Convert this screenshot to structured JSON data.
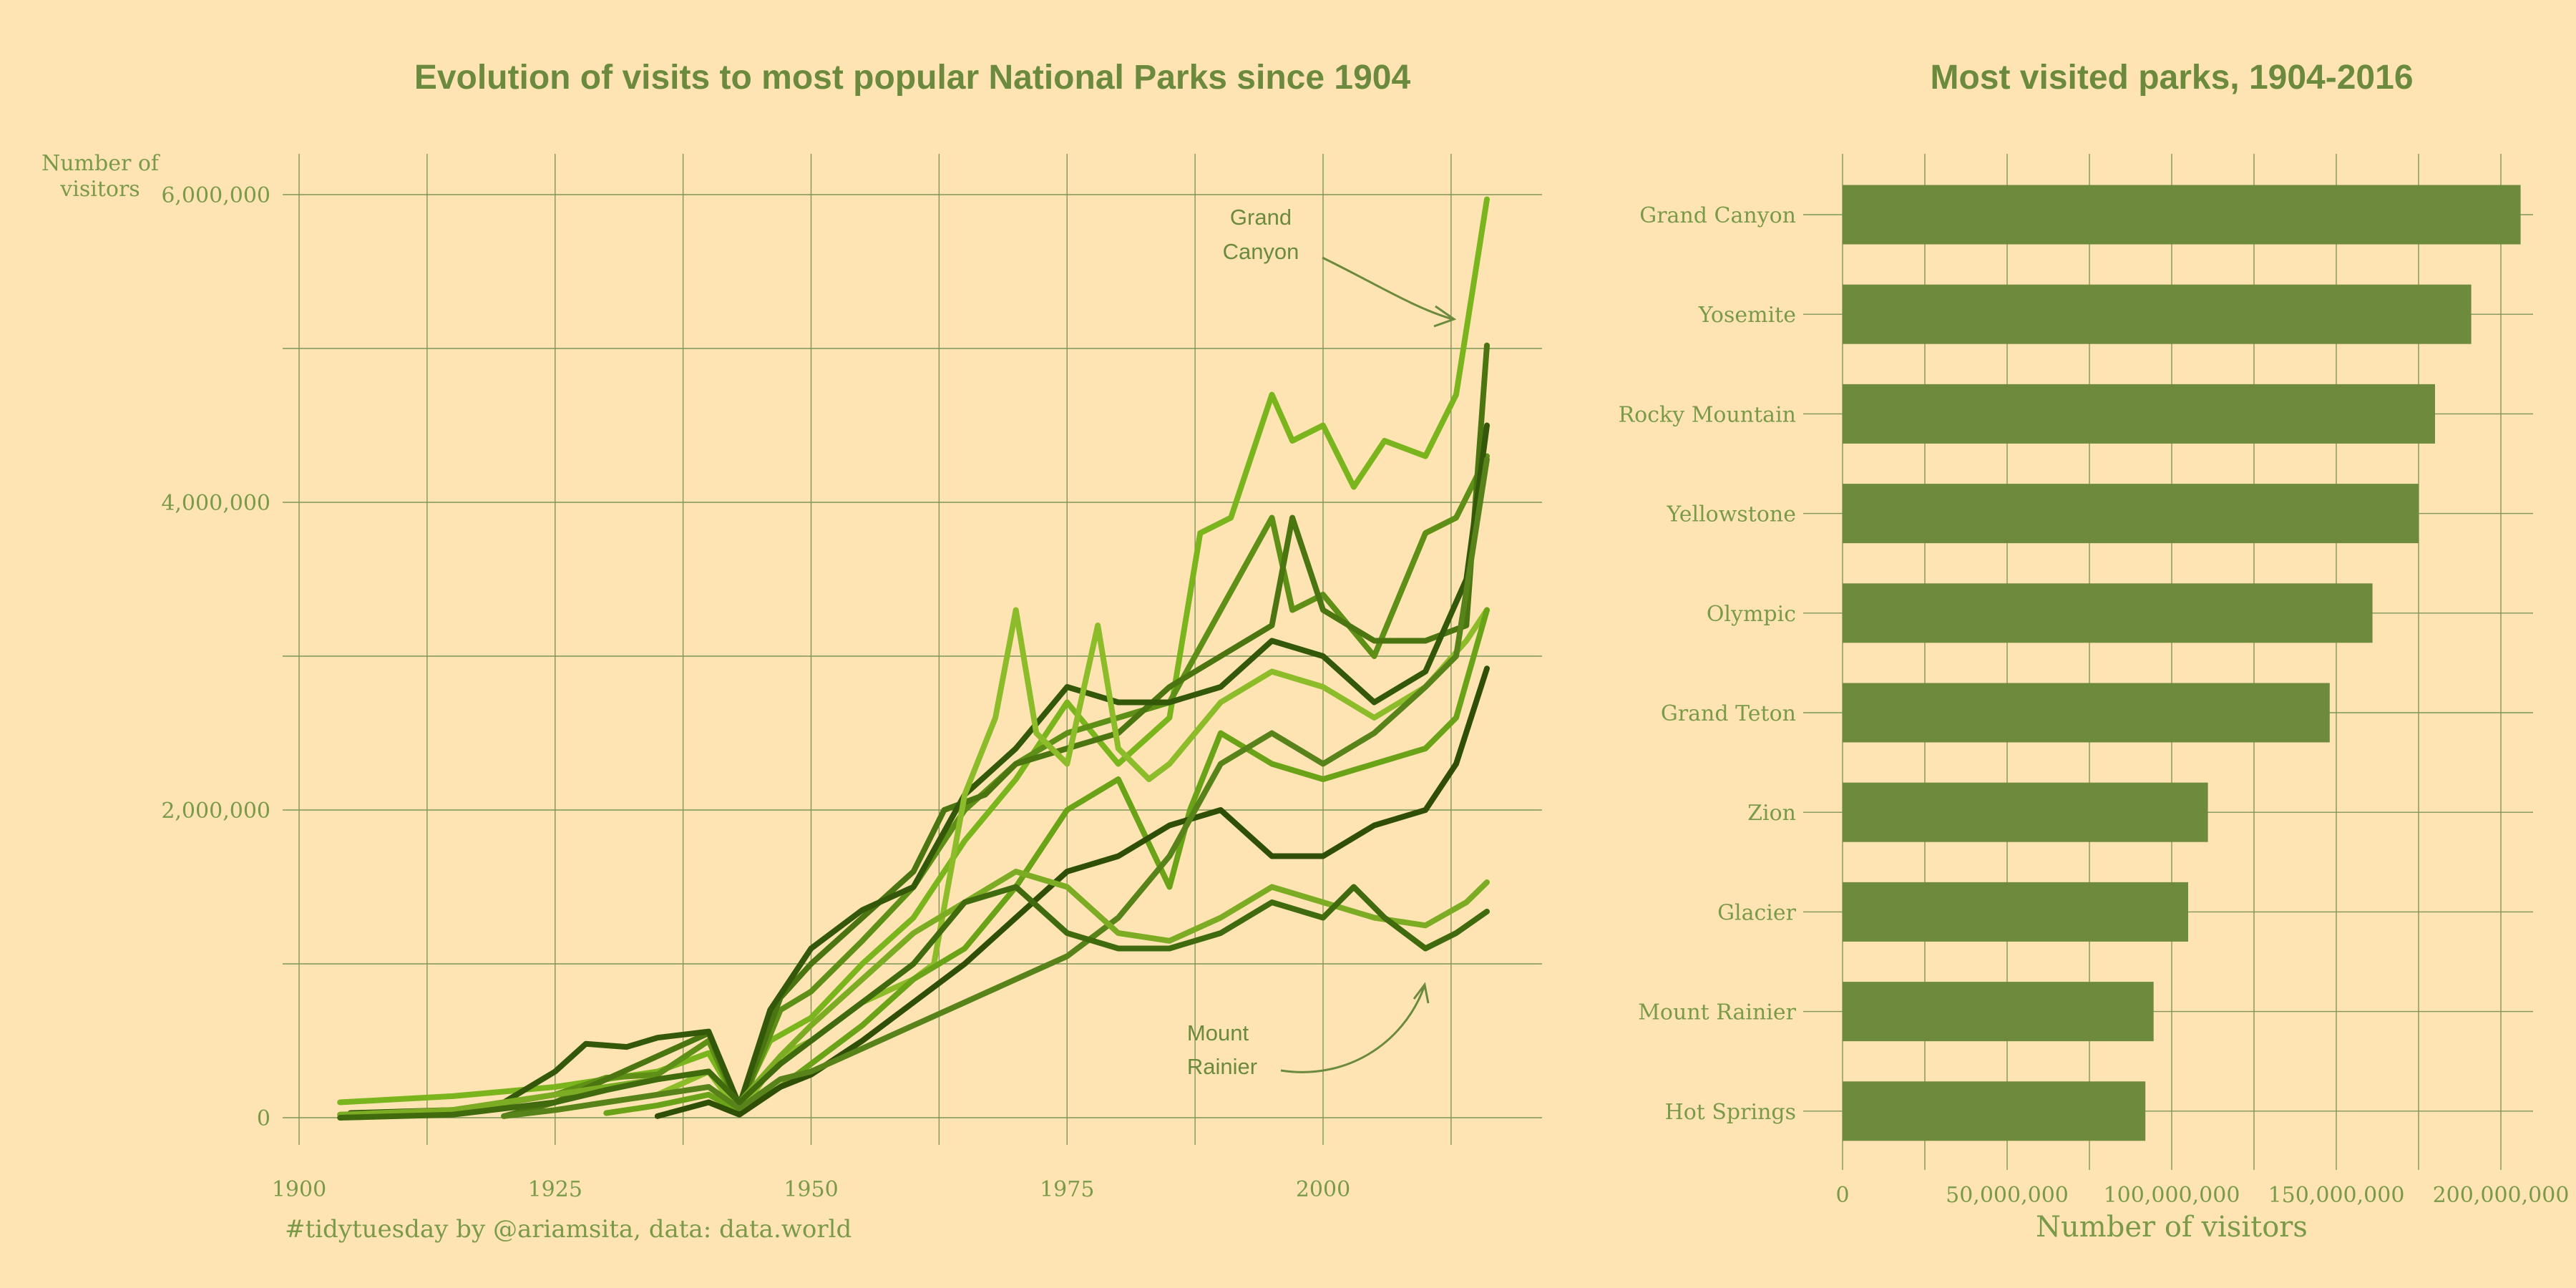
{
  "colors": {
    "background": "#ffe4b3",
    "text": "#6b8a3d",
    "grid": "#7f955a",
    "bar": "#6e8b3d",
    "line_palette": [
      "#7ab51d",
      "#5e8f16",
      "#4a7510",
      "#33580a",
      "#8cbc2a",
      "#6aa317",
      "#2f4f06",
      "#57831a",
      "#7bac24",
      "#3f6a0d"
    ]
  },
  "caption": "#tidytuesday by @ariamsita, data: data.world",
  "chart_data": [
    {
      "type": "line",
      "title": "Evolution of visits to most popular National Parks since 1904",
      "ylabel_lines": [
        "Number of",
        "visitors"
      ],
      "xlim": [
        1900,
        2020
      ],
      "ylim": [
        0,
        6000000
      ],
      "xticks": [
        1900,
        1925,
        1950,
        1975,
        2000
      ],
      "xtick_labels": [
        "1900",
        "1925",
        "1950",
        "1975",
        "2000"
      ],
      "yticks": [
        0,
        2000000,
        4000000,
        6000000
      ],
      "ytick_labels": [
        "0",
        "2,000,000",
        "4,000,000",
        "6,000,000"
      ],
      "grid": true,
      "annotations": [
        {
          "lines": [
            "Grand",
            "Canyon"
          ],
          "target": [
            2013,
            5200000
          ]
        },
        {
          "lines": [
            "Mount",
            "Rainier"
          ],
          "target": [
            2010,
            880000
          ]
        }
      ],
      "series": [
        {
          "points": [
            [
              1904,
              100000
            ],
            [
              1915,
              140000
            ],
            [
              1925,
              200000
            ],
            [
              1935,
              300000
            ],
            [
              1940,
              420000
            ],
            [
              1943,
              80000
            ],
            [
              1946,
              500000
            ],
            [
              1950,
              650000
            ],
            [
              1955,
              1000000
            ],
            [
              1960,
              1300000
            ],
            [
              1965,
              1800000
            ],
            [
              1970,
              2200000
            ],
            [
              1975,
              2700000
            ],
            [
              1980,
              2300000
            ],
            [
              1985,
              2600000
            ],
            [
              1988,
              3800000
            ],
            [
              1991,
              3900000
            ],
            [
              1995,
              4700000
            ],
            [
              1997,
              4400000
            ],
            [
              2000,
              4500000
            ],
            [
              2003,
              4100000
            ],
            [
              2006,
              4400000
            ],
            [
              2010,
              4300000
            ],
            [
              2013,
              4700000
            ],
            [
              2016,
              5970000
            ]
          ]
        },
        {
          "points": [
            [
              1904,
              20000
            ],
            [
              1915,
              40000
            ],
            [
              1925,
              150000
            ],
            [
              1930,
              260000
            ],
            [
              1935,
              280000
            ],
            [
              1940,
              500000
            ],
            [
              1943,
              50000
            ],
            [
              1947,
              700000
            ],
            [
              1950,
              820000
            ],
            [
              1955,
              1150000
            ],
            [
              1960,
              1500000
            ],
            [
              1965,
              2000000
            ],
            [
              1970,
              2300000
            ],
            [
              1975,
              2500000
            ],
            [
              1980,
              2600000
            ],
            [
              1985,
              2700000
            ],
            [
              1990,
              3300000
            ],
            [
              1995,
              3900000
            ],
            [
              1997,
              3300000
            ],
            [
              2000,
              3400000
            ],
            [
              2005,
              3000000
            ],
            [
              2010,
              3800000
            ],
            [
              2013,
              3900000
            ],
            [
              2016,
              4300000
            ]
          ]
        },
        {
          "points": [
            [
              1920,
              10000
            ],
            [
              1925,
              100000
            ],
            [
              1930,
              250000
            ],
            [
              1935,
              400000
            ],
            [
              1940,
              550000
            ],
            [
              1943,
              60000
            ],
            [
              1947,
              780000
            ],
            [
              1950,
              1000000
            ],
            [
              1955,
              1300000
            ],
            [
              1960,
              1600000
            ],
            [
              1963,
              2000000
            ],
            [
              1967,
              2100000
            ],
            [
              1970,
              2300000
            ],
            [
              1975,
              2400000
            ],
            [
              1980,
              2500000
            ],
            [
              1985,
              2800000
            ],
            [
              1990,
              3000000
            ],
            [
              1995,
              3200000
            ],
            [
              1997,
              3900000
            ],
            [
              2000,
              3300000
            ],
            [
              2005,
              3100000
            ],
            [
              2010,
              3100000
            ],
            [
              2014,
              3200000
            ],
            [
              2016,
              5020000
            ]
          ]
        },
        {
          "points": [
            [
              1905,
              30000
            ],
            [
              1915,
              50000
            ],
            [
              1920,
              100000
            ],
            [
              1925,
              300000
            ],
            [
              1928,
              480000
            ],
            [
              1932,
              460000
            ],
            [
              1935,
              520000
            ],
            [
              1940,
              560000
            ],
            [
              1943,
              80000
            ],
            [
              1946,
              700000
            ],
            [
              1950,
              1100000
            ],
            [
              1955,
              1350000
            ],
            [
              1960,
              1500000
            ],
            [
              1965,
              2100000
            ],
            [
              1970,
              2400000
            ],
            [
              1975,
              2800000
            ],
            [
              1980,
              2700000
            ],
            [
              1985,
              2700000
            ],
            [
              1990,
              2800000
            ],
            [
              1995,
              3100000
            ],
            [
              2000,
              3000000
            ],
            [
              2005,
              2700000
            ],
            [
              2010,
              2900000
            ],
            [
              2014,
              3500000
            ],
            [
              2016,
              4500000
            ]
          ]
        },
        {
          "points": [
            [
              1925,
              50000
            ],
            [
              1930,
              100000
            ],
            [
              1935,
              150000
            ],
            [
              1940,
              300000
            ],
            [
              1943,
              30000
            ],
            [
              1947,
              400000
            ],
            [
              1950,
              500000
            ],
            [
              1955,
              750000
            ],
            [
              1960,
              900000
            ],
            [
              1962,
              1000000
            ],
            [
              1965,
              2100000
            ],
            [
              1968,
              2600000
            ],
            [
              1970,
              3300000
            ],
            [
              1972,
              2500000
            ],
            [
              1975,
              2300000
            ],
            [
              1978,
              3200000
            ],
            [
              1980,
              2400000
            ],
            [
              1983,
              2200000
            ],
            [
              1985,
              2300000
            ],
            [
              1990,
              2700000
            ],
            [
              1995,
              2900000
            ],
            [
              2000,
              2800000
            ],
            [
              2005,
              2600000
            ],
            [
              2010,
              2800000
            ],
            [
              2014,
              3100000
            ],
            [
              2016,
              3300000
            ]
          ]
        },
        {
          "points": [
            [
              1930,
              30000
            ],
            [
              1935,
              80000
            ],
            [
              1940,
              150000
            ],
            [
              1943,
              40000
            ],
            [
              1947,
              200000
            ],
            [
              1950,
              350000
            ],
            [
              1955,
              600000
            ],
            [
              1960,
              900000
            ],
            [
              1965,
              1100000
            ],
            [
              1970,
              1500000
            ],
            [
              1975,
              2000000
            ],
            [
              1980,
              2200000
            ],
            [
              1985,
              1500000
            ],
            [
              1987,
              2000000
            ],
            [
              1990,
              2500000
            ],
            [
              1995,
              2300000
            ],
            [
              2000,
              2200000
            ],
            [
              2005,
              2300000
            ],
            [
              2010,
              2400000
            ],
            [
              2013,
              2600000
            ],
            [
              2016,
              3300000
            ]
          ]
        },
        {
          "points": [
            [
              1935,
              10000
            ],
            [
              1940,
              100000
            ],
            [
              1943,
              20000
            ],
            [
              1947,
              200000
            ],
            [
              1950,
              280000
            ],
            [
              1955,
              500000
            ],
            [
              1960,
              750000
            ],
            [
              1965,
              1000000
            ],
            [
              1970,
              1300000
            ],
            [
              1975,
              1600000
            ],
            [
              1980,
              1700000
            ],
            [
              1985,
              1900000
            ],
            [
              1990,
              2000000
            ],
            [
              1995,
              1700000
            ],
            [
              2000,
              1700000
            ],
            [
              2005,
              1900000
            ],
            [
              2010,
              2000000
            ],
            [
              2013,
              2300000
            ],
            [
              2016,
              2920000
            ]
          ]
        },
        {
          "points": [
            [
              1920,
              10000
            ],
            [
              1925,
              50000
            ],
            [
              1930,
              100000
            ],
            [
              1935,
              150000
            ],
            [
              1940,
              200000
            ],
            [
              1943,
              60000
            ],
            [
              1947,
              250000
            ],
            [
              1950,
              300000
            ],
            [
              1955,
              450000
            ],
            [
              1960,
              600000
            ],
            [
              1965,
              750000
            ],
            [
              1970,
              900000
            ],
            [
              1975,
              1050000
            ],
            [
              1980,
              1300000
            ],
            [
              1985,
              1700000
            ],
            [
              1990,
              2300000
            ],
            [
              1995,
              2500000
            ],
            [
              2000,
              2300000
            ],
            [
              2005,
              2500000
            ],
            [
              2010,
              2800000
            ],
            [
              2013,
              3000000
            ],
            [
              2016,
              4280000
            ]
          ]
        },
        {
          "points": [
            [
              1904,
              20000
            ],
            [
              1915,
              50000
            ],
            [
              1925,
              150000
            ],
            [
              1930,
              200000
            ],
            [
              1935,
              250000
            ],
            [
              1940,
              300000
            ],
            [
              1943,
              100000
            ],
            [
              1947,
              400000
            ],
            [
              1950,
              600000
            ],
            [
              1955,
              900000
            ],
            [
              1960,
              1200000
            ],
            [
              1965,
              1400000
            ],
            [
              1970,
              1600000
            ],
            [
              1975,
              1500000
            ],
            [
              1980,
              1200000
            ],
            [
              1985,
              1150000
            ],
            [
              1990,
              1300000
            ],
            [
              1995,
              1500000
            ],
            [
              2000,
              1400000
            ],
            [
              2005,
              1300000
            ],
            [
              2010,
              1250000
            ],
            [
              2014,
              1400000
            ],
            [
              2016,
              1530000
            ]
          ]
        },
        {
          "points": [
            [
              1904,
              0
            ],
            [
              1915,
              20000
            ],
            [
              1925,
              100000
            ],
            [
              1930,
              180000
            ],
            [
              1935,
              250000
            ],
            [
              1940,
              300000
            ],
            [
              1943,
              100000
            ],
            [
              1947,
              350000
            ],
            [
              1950,
              500000
            ],
            [
              1955,
              750000
            ],
            [
              1960,
              1000000
            ],
            [
              1965,
              1400000
            ],
            [
              1970,
              1500000
            ],
            [
              1975,
              1200000
            ],
            [
              1980,
              1100000
            ],
            [
              1985,
              1100000
            ],
            [
              1990,
              1200000
            ],
            [
              1995,
              1400000
            ],
            [
              2000,
              1300000
            ],
            [
              2003,
              1500000
            ],
            [
              2006,
              1300000
            ],
            [
              2010,
              1100000
            ],
            [
              2013,
              1200000
            ],
            [
              2016,
              1340000
            ]
          ]
        }
      ]
    },
    {
      "type": "bar",
      "orientation": "horizontal",
      "title": "Most visited parks, 1904-2016",
      "xlabel": "Number of visitors",
      "xlim": [
        0,
        215000000
      ],
      "xticks": [
        0,
        50000000,
        100000000,
        150000000,
        200000000
      ],
      "xtick_labels": [
        "0",
        "50,000,000",
        "100,000,000",
        "150,000,000",
        "200,000,000"
      ],
      "grid": true,
      "categories": [
        "Grand Canyon",
        "Yosemite",
        "Rocky Mountain",
        "Yellowstone",
        "Olympic",
        "Grand Teton",
        "Zion",
        "Glacier",
        "Mount Rainier",
        "Hot Springs"
      ],
      "values": [
        206000000,
        191000000,
        180000000,
        175000000,
        161000000,
        148000000,
        111000000,
        105000000,
        94500000,
        92000000
      ]
    }
  ]
}
